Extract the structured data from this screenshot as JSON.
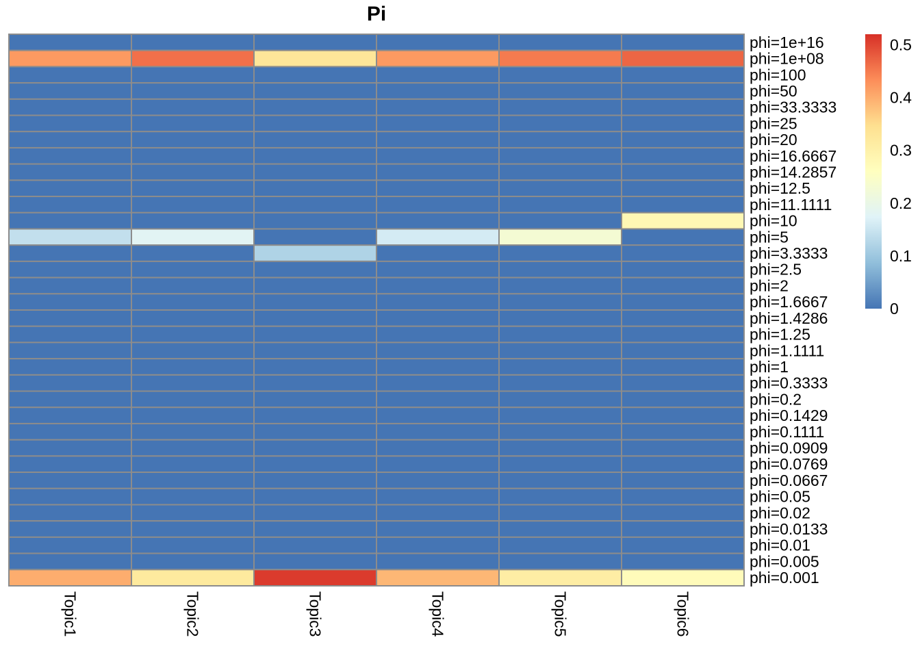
{
  "chart_data": {
    "type": "heatmap",
    "title": "Pi",
    "columns": [
      "Topic1",
      "Topic2",
      "Topic3",
      "Topic4",
      "Topic5",
      "Topic6"
    ],
    "rows": [
      "phi=1e+16",
      "phi=1e+08",
      "phi=100",
      "phi=50",
      "phi=33.3333",
      "phi=25",
      "phi=20",
      "phi=16.6667",
      "phi=14.2857",
      "phi=12.5",
      "phi=11.1111",
      "phi=10",
      "phi=5",
      "phi=3.3333",
      "phi=2.5",
      "phi=2",
      "phi=1.6667",
      "phi=1.4286",
      "phi=1.25",
      "phi=1.1111",
      "phi=1",
      "phi=0.3333",
      "phi=0.2",
      "phi=0.1429",
      "phi=0.1111",
      "phi=0.0909",
      "phi=0.0769",
      "phi=0.0667",
      "phi=0.05",
      "phi=0.02",
      "phi=0.0133",
      "phi=0.01",
      "phi=0.005",
      "phi=0.001"
    ],
    "values": [
      [
        0,
        0,
        0,
        0,
        0,
        0
      ],
      [
        0.42,
        0.46,
        0.33,
        0.42,
        0.45,
        0.47
      ],
      [
        0,
        0,
        0,
        0,
        0,
        0
      ],
      [
        0,
        0,
        0,
        0,
        0,
        0
      ],
      [
        0,
        0,
        0,
        0,
        0,
        0
      ],
      [
        0,
        0,
        0,
        0,
        0,
        0
      ],
      [
        0,
        0,
        0,
        0,
        0,
        0
      ],
      [
        0,
        0,
        0,
        0,
        0,
        0
      ],
      [
        0,
        0,
        0,
        0,
        0,
        0
      ],
      [
        0,
        0,
        0,
        0,
        0,
        0
      ],
      [
        0,
        0,
        0,
        0,
        0,
        0
      ],
      [
        0,
        0,
        0,
        0,
        0,
        0.28
      ],
      [
        0.14,
        0.18,
        0,
        0.16,
        0.23,
        0
      ],
      [
        0,
        0,
        0.12,
        0,
        0,
        0
      ],
      [
        0,
        0,
        0,
        0,
        0,
        0
      ],
      [
        0,
        0,
        0,
        0,
        0,
        0
      ],
      [
        0,
        0,
        0,
        0,
        0,
        0
      ],
      [
        0,
        0,
        0,
        0,
        0,
        0
      ],
      [
        0,
        0,
        0,
        0,
        0,
        0
      ],
      [
        0,
        0,
        0,
        0,
        0,
        0
      ],
      [
        0,
        0,
        0,
        0,
        0,
        0
      ],
      [
        0,
        0,
        0,
        0,
        0,
        0
      ],
      [
        0,
        0,
        0,
        0,
        0,
        0
      ],
      [
        0,
        0,
        0,
        0,
        0,
        0
      ],
      [
        0,
        0,
        0,
        0,
        0,
        0
      ],
      [
        0,
        0,
        0,
        0,
        0,
        0
      ],
      [
        0,
        0,
        0,
        0,
        0,
        0
      ],
      [
        0,
        0,
        0,
        0,
        0,
        0
      ],
      [
        0,
        0,
        0,
        0,
        0,
        0
      ],
      [
        0,
        0,
        0,
        0,
        0,
        0
      ],
      [
        0,
        0,
        0,
        0,
        0,
        0
      ],
      [
        0,
        0,
        0,
        0,
        0,
        0
      ],
      [
        0,
        0,
        0,
        0,
        0,
        0
      ],
      [
        0.4,
        0.32,
        0.51,
        0.39,
        0.31,
        0.27
      ]
    ],
    "color_scale": {
      "min": 0,
      "max": 0.52,
      "colors": [
        "#4575b4",
        "#91bfdb",
        "#e0f3f8",
        "#ffffbf",
        "#fee090",
        "#fc8d59",
        "#d73027"
      ]
    },
    "legend_ticks": [
      0,
      0.1,
      0.2,
      0.3,
      0.4,
      0.5
    ],
    "legend_tick_labels": [
      "0",
      "0.1",
      "0.2",
      "0.3",
      "0.4",
      "0.5"
    ],
    "legend_placement": "right",
    "cell_border_color": "#8c8c8c"
  }
}
